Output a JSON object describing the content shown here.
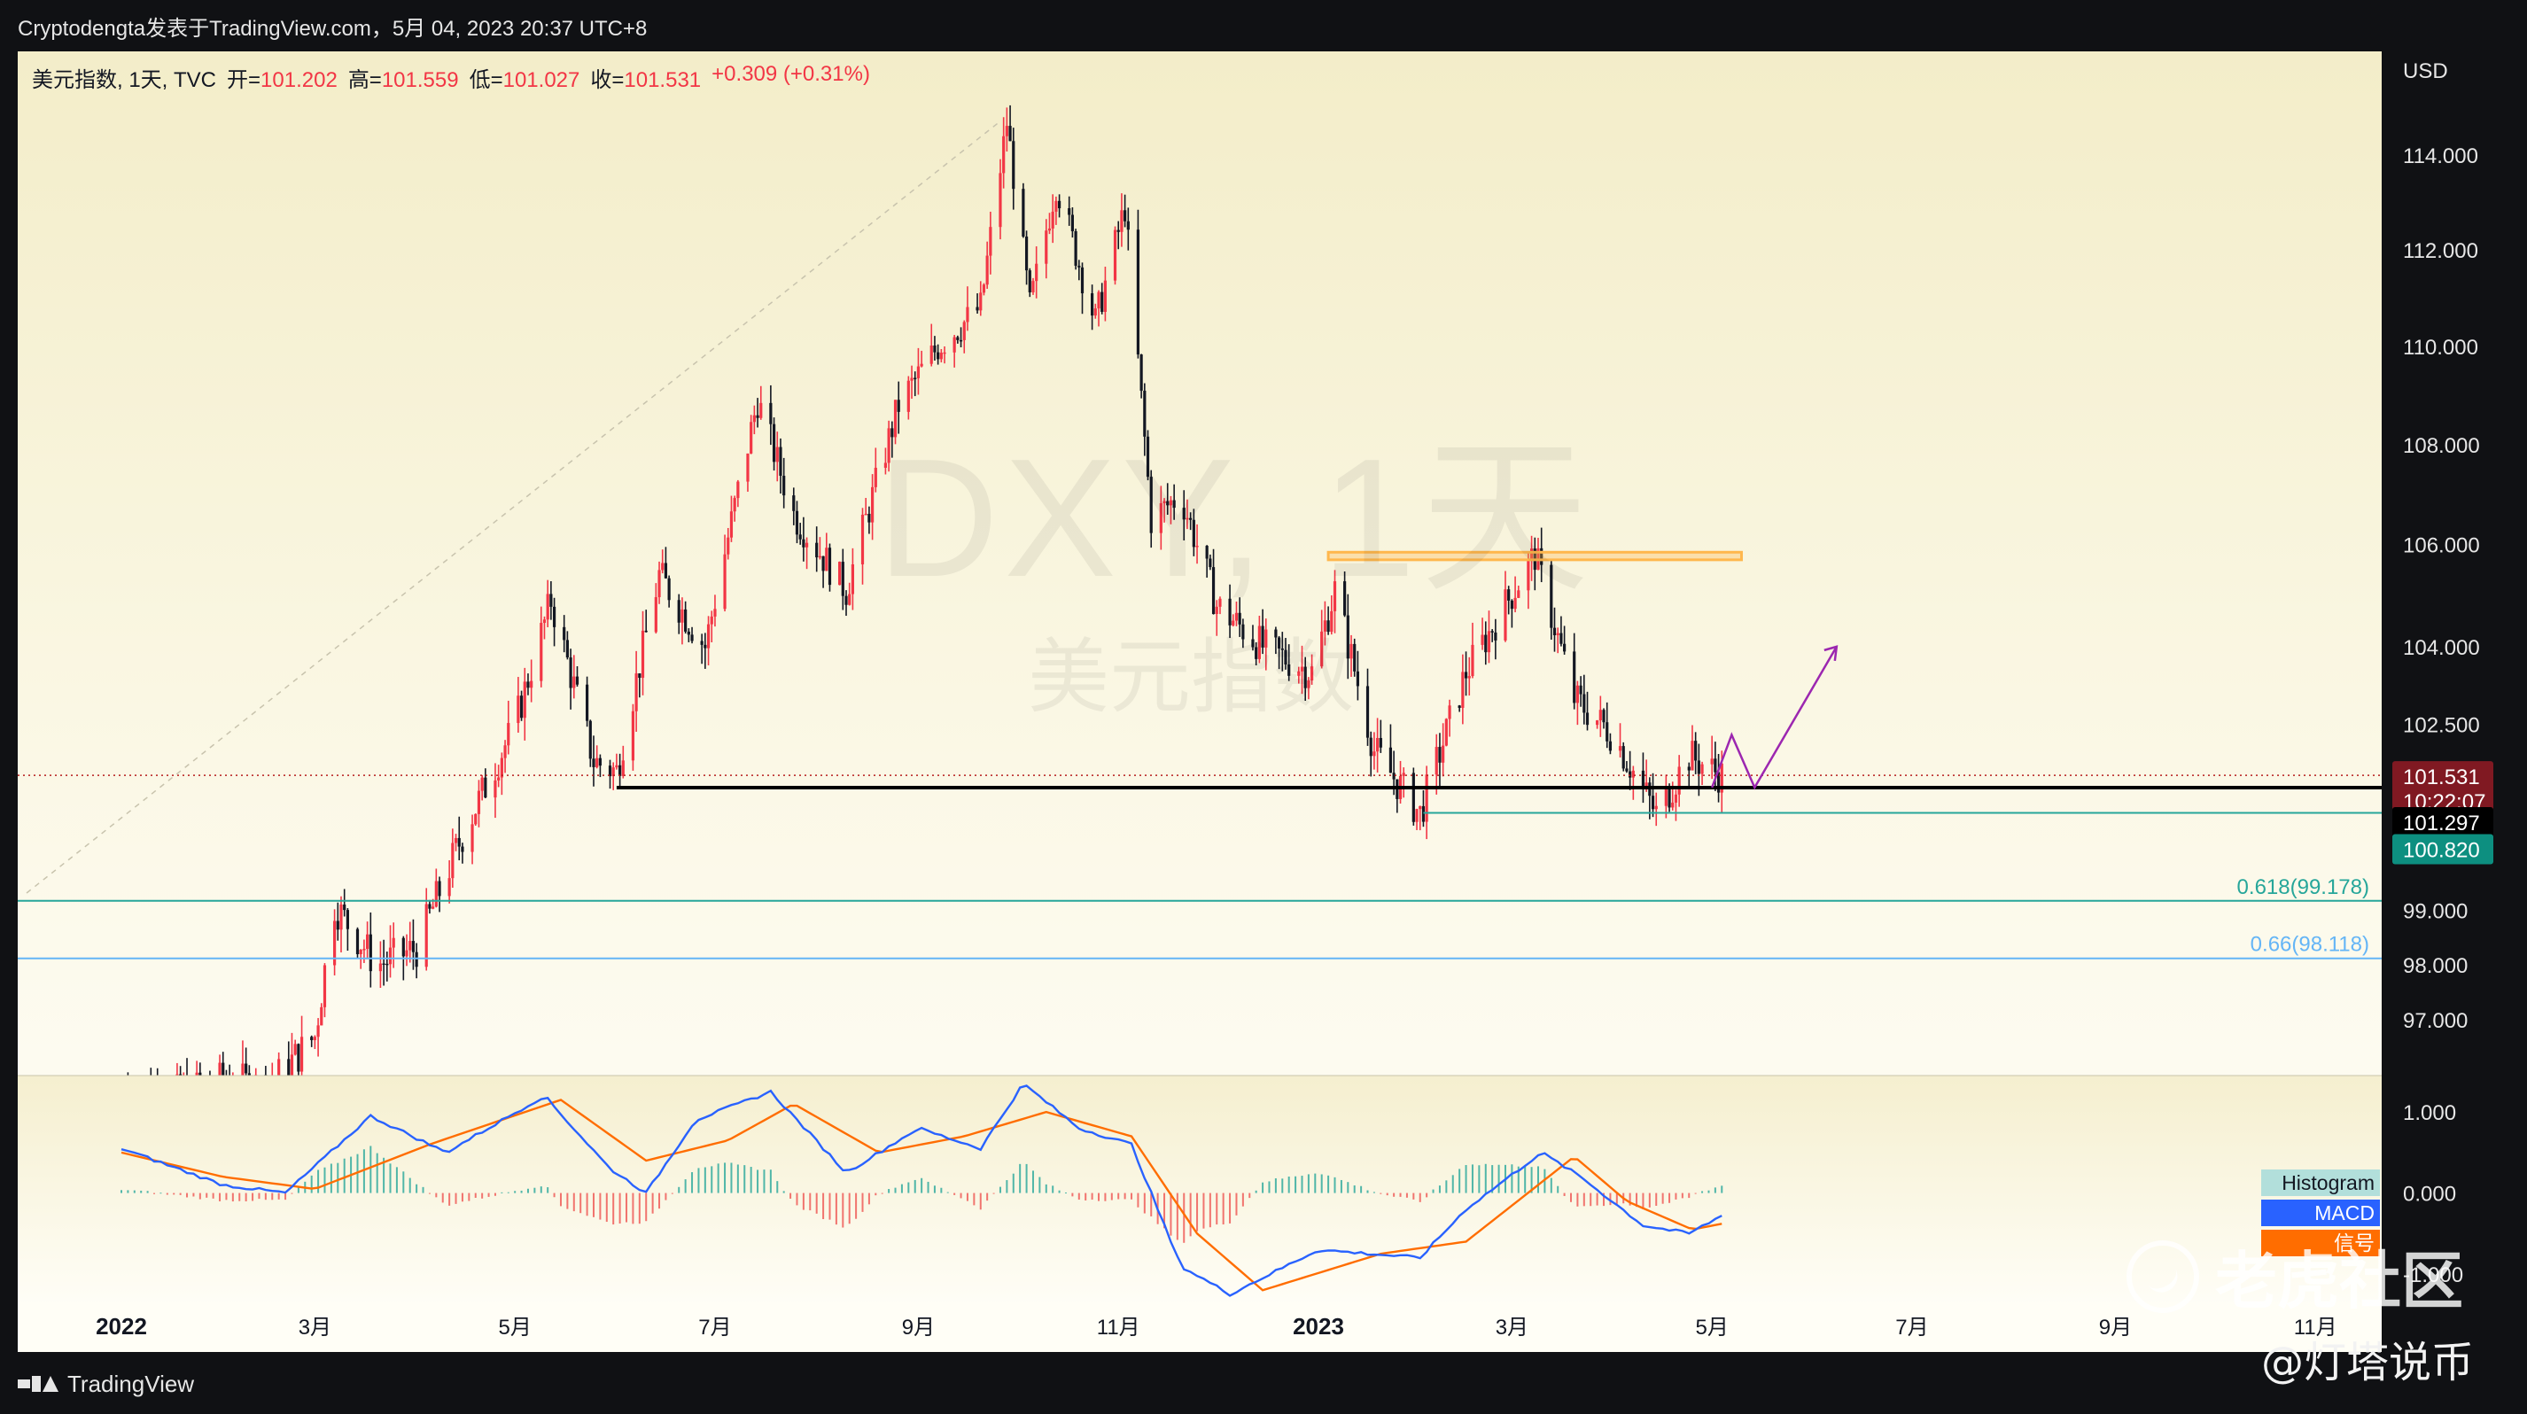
{
  "header": {
    "publish_line": "Cryptodengta发表于TradingView.com，5月 04, 2023 20:37 UTC+8"
  },
  "legend": {
    "symbol": "美元指数, 1天, TVC",
    "open_label": "开=",
    "open_value": "101.202",
    "high_label": "高=",
    "high_value": "101.559",
    "low_label": "低=",
    "low_value": "101.027",
    "close_label": "收=",
    "close_value": "101.531",
    "change": "+0.309 (+0.31%)"
  },
  "watermark": {
    "ticker": "DXY, 1天",
    "name": "美元指数"
  },
  "axis": {
    "currency": "USD"
  },
  "price_tags": {
    "last_price": "101.531",
    "countdown": "10:22:07",
    "support_price": "101.297",
    "low_price": "100.820"
  },
  "fib": [
    {
      "label": "0.618(99.178)",
      "price": 99.178,
      "color": "#26a69a"
    },
    {
      "label": "0.66(98.118)",
      "price": 98.118,
      "color": "#64b5f6"
    }
  ],
  "macd_legend": {
    "histogram": "Histogram",
    "macd": "MACD",
    "signal": "信号"
  },
  "footer": {
    "brand": "TradingView",
    "user_watermark": "@灯塔说币",
    "community_watermark": "老虎社区"
  },
  "colors": {
    "up": "#f23645",
    "down": "#131722",
    "macd": "#2962ff",
    "signal": "#ff6d00",
    "resistance": "#ffb74d",
    "projection": "#9c27b0"
  },
  "chart_data": [
    {
      "type": "candlestick",
      "title": "美元指数, 1天, TVC",
      "x_ticks": [
        "2022",
        "3月",
        "5月",
        "7月",
        "9月",
        "11月",
        "2023",
        "3月",
        "5月",
        "7月",
        "9月",
        "11月"
      ],
      "y_ticks": [
        "114.000",
        "112.000",
        "110.000",
        "108.000",
        "106.000",
        "104.000",
        "102.500",
        "99.000",
        "98.000",
        "97.000"
      ],
      "ylim": [
        95.9,
        115.6
      ],
      "price_curve": [
        [
          "2022-01-01",
          95.8
        ],
        [
          "2022-01-15",
          95.6
        ],
        [
          "2022-02-01",
          95.9
        ],
        [
          "2022-02-15",
          95.8
        ],
        [
          "2022-03-01",
          96.7
        ],
        [
          "2022-03-07",
          99.1
        ],
        [
          "2022-03-20",
          98.0
        ],
        [
          "2022-04-01",
          98.3
        ],
        [
          "2022-04-15",
          100.4
        ],
        [
          "2022-05-01",
          102.5
        ],
        [
          "2022-05-12",
          104.9
        ],
        [
          "2022-05-25",
          101.8
        ],
        [
          "2022-06-01",
          101.6
        ],
        [
          "2022-06-14",
          105.4
        ],
        [
          "2022-06-28",
          104.0
        ],
        [
          "2022-07-14",
          108.9
        ],
        [
          "2022-07-25",
          106.6
        ],
        [
          "2022-08-10",
          105.1
        ],
        [
          "2022-08-26",
          108.8
        ],
        [
          "2022-09-07",
          110.0
        ],
        [
          "2022-09-20",
          110.8
        ],
        [
          "2022-09-28",
          114.7
        ],
        [
          "2022-10-05",
          110.8
        ],
        [
          "2022-10-13",
          113.4
        ],
        [
          "2022-10-25",
          110.5
        ],
        [
          "2022-11-03",
          112.9
        ],
        [
          "2022-11-11",
          106.5
        ],
        [
          "2022-11-20",
          107.0
        ],
        [
          "2022-12-01",
          104.8
        ],
        [
          "2022-12-15",
          104.0
        ],
        [
          "2022-12-30",
          103.5
        ],
        [
          "2023-01-06",
          105.1
        ],
        [
          "2023-01-18",
          102.0
        ],
        [
          "2023-02-01",
          100.8
        ],
        [
          "2023-02-15",
          103.5
        ],
        [
          "2023-03-08",
          105.8
        ],
        [
          "2023-03-20",
          103.0
        ],
        [
          "2023-04-01",
          102.3
        ],
        [
          "2023-04-14",
          100.8
        ],
        [
          "2023-04-24",
          101.9
        ],
        [
          "2023-05-04",
          101.53
        ]
      ],
      "last_close": 101.531,
      "support_level": 101.297,
      "low_level": 100.82,
      "resistance_zone": [
        105.7,
        105.85
      ],
      "fib_levels": [
        {
          "ratio": 0.618,
          "price": 99.178
        },
        {
          "ratio": 0.66,
          "price": 98.118
        }
      ],
      "projection": [
        [
          "2023-05-01",
          101.3
        ],
        [
          "2023-05-07",
          102.3
        ],
        [
          "2023-05-14",
          101.3
        ],
        [
          "2023-06-08",
          104.0
        ]
      ]
    },
    {
      "type": "line",
      "title": "MACD",
      "y_ticks": [
        "1.000",
        "0.000",
        "-1.000"
      ],
      "ylim": [
        -1.35,
        1.45
      ],
      "macd_curve": [
        [
          "2022-01-01",
          0.55
        ],
        [
          "2022-02-01",
          0.1
        ],
        [
          "2022-02-20",
          0.0
        ],
        [
          "2022-03-18",
          0.95
        ],
        [
          "2022-04-10",
          0.5
        ],
        [
          "2022-05-10",
          1.2
        ],
        [
          "2022-05-30",
          0.3
        ],
        [
          "2022-06-10",
          0.0
        ],
        [
          "2022-06-25",
          0.9
        ],
        [
          "2022-07-18",
          1.25
        ],
        [
          "2022-08-10",
          0.25
        ],
        [
          "2022-09-01",
          0.8
        ],
        [
          "2022-09-20",
          0.55
        ],
        [
          "2022-10-03",
          1.35
        ],
        [
          "2022-10-20",
          0.8
        ],
        [
          "2022-11-05",
          0.6
        ],
        [
          "2022-11-20",
          -0.9
        ],
        [
          "2022-12-05",
          -1.25
        ],
        [
          "2023-01-01",
          -0.7
        ],
        [
          "2023-02-01",
          -0.8
        ],
        [
          "2023-02-15",
          -0.2
        ],
        [
          "2023-03-10",
          0.5
        ],
        [
          "2023-03-22",
          0.2
        ],
        [
          "2023-04-10",
          -0.4
        ],
        [
          "2023-04-24",
          -0.5
        ],
        [
          "2023-05-04",
          -0.28
        ]
      ],
      "signal_curve": [
        [
          "2022-01-01",
          0.5
        ],
        [
          "2022-02-01",
          0.2
        ],
        [
          "2022-03-01",
          0.05
        ],
        [
          "2022-04-05",
          0.6
        ],
        [
          "2022-05-15",
          1.15
        ],
        [
          "2022-06-10",
          0.4
        ],
        [
          "2022-07-05",
          0.65
        ],
        [
          "2022-07-25",
          1.1
        ],
        [
          "2022-08-20",
          0.5
        ],
        [
          "2022-09-15",
          0.7
        ],
        [
          "2022-10-10",
          1.0
        ],
        [
          "2022-11-05",
          0.7
        ],
        [
          "2022-11-25",
          -0.5
        ],
        [
          "2022-12-15",
          -1.2
        ],
        [
          "2023-01-20",
          -0.75
        ],
        [
          "2023-02-15",
          -0.6
        ],
        [
          "2023-03-20",
          0.45
        ],
        [
          "2023-04-05",
          -0.1
        ],
        [
          "2023-04-25",
          -0.45
        ],
        [
          "2023-05-04",
          -0.38
        ]
      ]
    }
  ]
}
